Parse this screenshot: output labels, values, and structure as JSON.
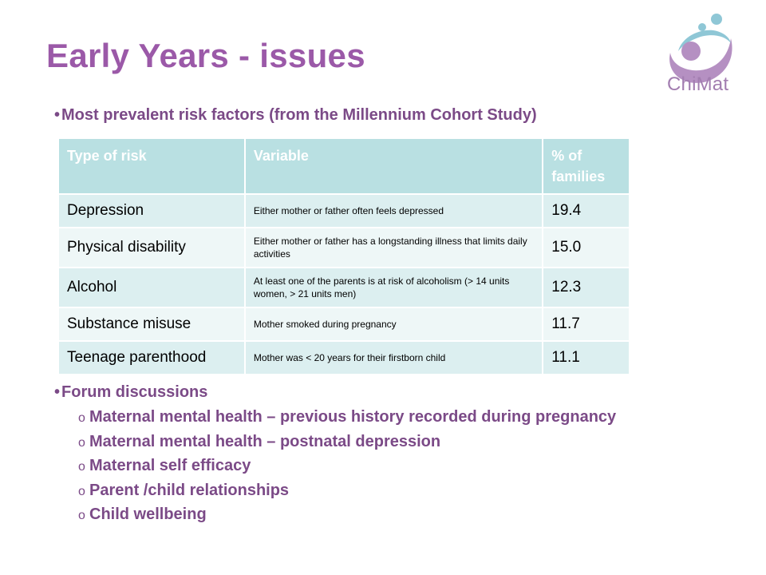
{
  "slide": {
    "title": "Early Years - issues",
    "logo_text": "ChiMat",
    "bullet1": "Most prevalent risk factors (from the Millennium Cohort Study)",
    "bullet2": "Forum discussions"
  },
  "table": {
    "headers": [
      "Type of risk",
      "Variable",
      "% of families"
    ],
    "rows": [
      {
        "type": "Depression",
        "variable": "Either mother or father often feels depressed",
        "pct": "19.4"
      },
      {
        "type": "Physical disability",
        "variable": "Either mother or father has a longstanding illness that limits daily activities",
        "pct": "15.0"
      },
      {
        "type": "Alcohol",
        "variable": "At least one of the parents is at risk of alcoholism (> 14 units women, > 21 units men)",
        "pct": "12.3"
      },
      {
        "type": "Substance misuse",
        "variable": "Mother smoked during pregnancy",
        "pct": "11.7"
      },
      {
        "type": "Teenage parenthood",
        "variable": "Mother was < 20 years for their firstborn child",
        "pct": "11.1"
      }
    ]
  },
  "forum": {
    "items": [
      "Maternal mental health – previous history recorded during pregnancy",
      "Maternal mental health – postnatal depression",
      "Maternal self efficacy",
      "Parent /child relationships",
      "Child wellbeing"
    ]
  },
  "colors": {
    "title": "#9b59a8",
    "text": "#7b4a87",
    "table_header": "#b9e0e2",
    "row_dark": "#dceff0",
    "row_light": "#eef7f7"
  }
}
